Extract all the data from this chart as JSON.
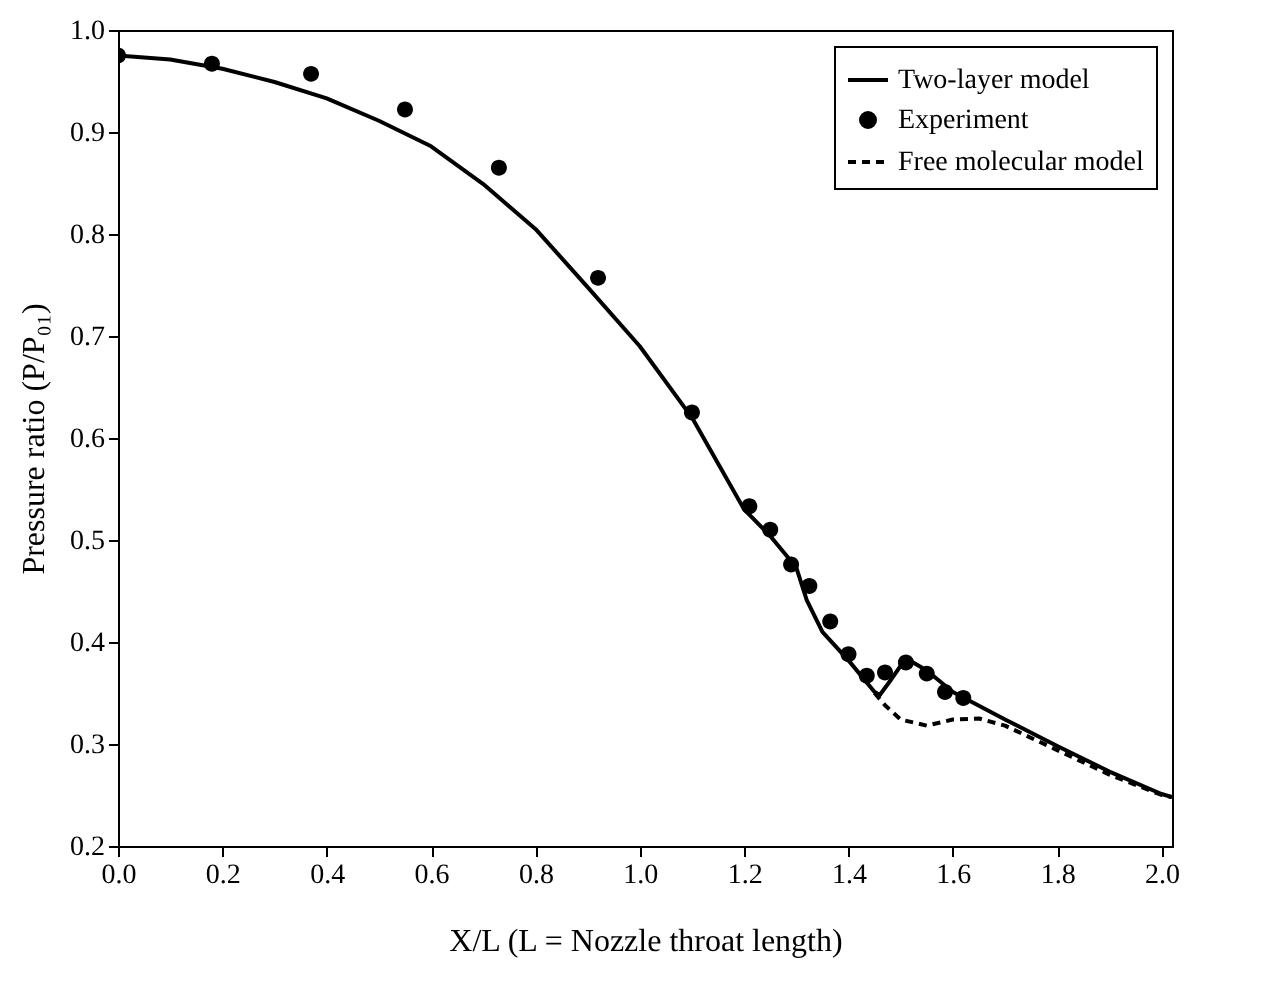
{
  "chart_data": {
    "type": "line",
    "xlabel": "X/L (L = Nozzle throat length)",
    "ylabel": "Pressure ratio (P/P₀₁)",
    "xlim": [
      0,
      2.02
    ],
    "xticks": [
      {
        "value": 0,
        "label": "0.0"
      },
      0.2,
      0.4,
      0.6,
      0.8,
      {
        "value": 1,
        "label": "1.0"
      },
      1.2,
      1.4,
      1.6,
      1.8,
      {
        "value": 2,
        "label": "2.0"
      }
    ],
    "ylim": [
      0.2,
      1
    ],
    "yticks": [
      0.2,
      0.3,
      0.4,
      0.5,
      0.6,
      0.7,
      0.8,
      0.9,
      {
        "value": 1,
        "label": "1.0"
      }
    ],
    "grid": false,
    "legend": "top right",
    "series": [
      {
        "name": "Two-layer model",
        "line_style": "solid",
        "color": "#000000",
        "x": [
          0,
          0.1,
          0.2,
          0.3,
          0.4,
          0.5,
          0.6,
          0.7,
          0.8,
          0.9,
          1.0,
          1.1,
          1.2,
          1.25,
          1.3,
          1.32,
          1.35,
          1.4,
          1.45,
          1.46,
          1.48,
          1.51,
          1.55,
          1.6,
          1.7,
          1.8,
          1.9,
          2.0,
          2.02
        ],
        "values": [
          0.975,
          0.971,
          0.962,
          0.949,
          0.933,
          0.911,
          0.886,
          0.849,
          0.805,
          0.748,
          0.69,
          0.62,
          0.53,
          0.504,
          0.473,
          0.441,
          0.41,
          0.382,
          0.351,
          0.348,
          0.362,
          0.384,
          0.372,
          0.351,
          0.324,
          0.298,
          0.273,
          0.251,
          0.248
        ]
      },
      {
        "name": "Experiment",
        "type": "scatter",
        "marker": "circle",
        "color": "#000000",
        "x": [
          0,
          0.18,
          0.37,
          0.55,
          0.73,
          0.92,
          1.1,
          1.21,
          1.25,
          1.29,
          1.325,
          1.365,
          1.4,
          1.435,
          1.47,
          1.51,
          1.55,
          1.585,
          1.62
        ],
        "values": [
          0.975,
          0.967,
          0.957,
          0.922,
          0.865,
          0.757,
          0.625,
          0.533,
          0.51,
          0.476,
          0.455,
          0.42,
          0.388,
          0.367,
          0.37,
          0.38,
          0.369,
          0.351,
          0.345
        ]
      },
      {
        "name": "Free molecular model",
        "line_style": "dashed",
        "color": "#000000",
        "x": [
          1.45,
          1.47,
          1.5,
          1.55,
          1.6,
          1.65,
          1.7,
          1.8,
          1.9,
          2.0,
          2.02
        ],
        "values": [
          0.35,
          0.338,
          0.324,
          0.318,
          0.324,
          0.325,
          0.318,
          0.294,
          0.27,
          0.25,
          0.248
        ]
      }
    ]
  }
}
